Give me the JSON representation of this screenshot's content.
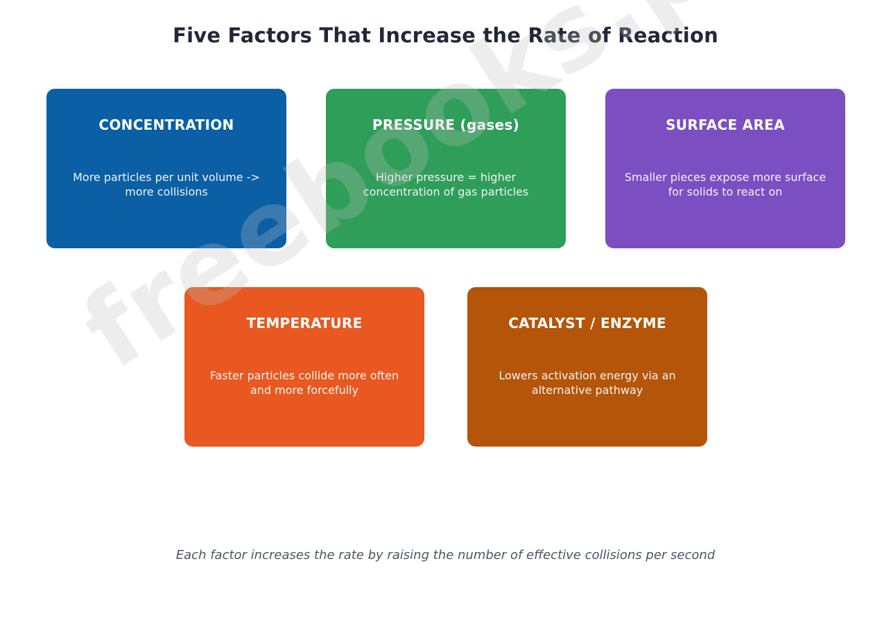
{
  "title": "Five Factors That Increase the Rate of Reaction",
  "factors": [
    {
      "name": "CONCENTRATION",
      "description": "More particles per unit volume -> more collisions",
      "color": "#0b5fa5"
    },
    {
      "name": "PRESSURE (gases)",
      "description": "Higher pressure = higher concentration of gas particles",
      "color": "#2e9e58"
    },
    {
      "name": "SURFACE AREA",
      "description": "Smaller pieces expose more surface for solids to react on",
      "color": "#7b4fc1"
    },
    {
      "name": "TEMPERATURE",
      "description": "Faster particles collide more often and more forcefully",
      "color": "#e85820"
    },
    {
      "name": "CATALYST / ENZYME",
      "description": "Lowers activation energy via an alternative pathway",
      "color": "#b4550a"
    }
  ],
  "caption": "Each factor increases the rate by raising the number of effective collisions per second",
  "watermark": "freebooks.pk"
}
